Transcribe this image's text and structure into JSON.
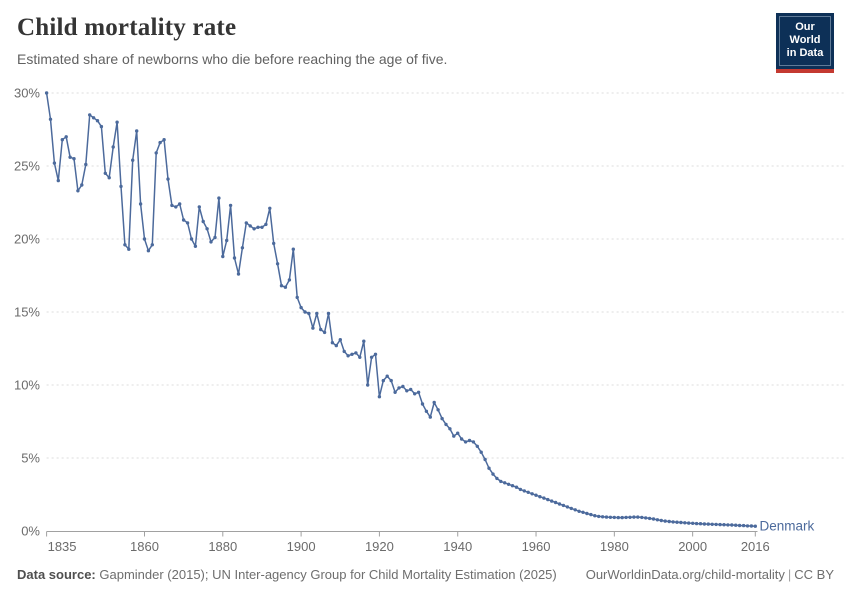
{
  "header": {
    "title": "Child mortality rate",
    "subtitle": "Estimated share of newborns who die before reaching the age of five."
  },
  "logo": {
    "line1": "Our World",
    "line2": "in Data",
    "bg_color": "#0d3057",
    "bar_color": "#c43931"
  },
  "chart_data": {
    "type": "line",
    "title": "Child mortality rate",
    "xlabel": "",
    "ylabel": "",
    "grid": "horizontal-dashed",
    "legend_position": "end-of-line-label",
    "xlim": [
      1835,
      2016
    ],
    "ylim": [
      0,
      30
    ],
    "x_start": 1835,
    "x_end": 2016,
    "x_step": 1,
    "x_ticks": [
      1835,
      1860,
      1880,
      1900,
      1920,
      1940,
      1960,
      1980,
      2000,
      2016
    ],
    "y_ticks": [
      {
        "value": 0,
        "label": "0%"
      },
      {
        "value": 5,
        "label": "5%"
      },
      {
        "value": 10,
        "label": "10%"
      },
      {
        "value": 15,
        "label": "15%"
      },
      {
        "value": 20,
        "label": "20%"
      },
      {
        "value": 25,
        "label": "25%"
      },
      {
        "value": 30,
        "label": "30%"
      }
    ],
    "series": [
      {
        "name": "Denmark",
        "color": "#4c6a9c",
        "unit": "%",
        "values": [
          30.0,
          28.2,
          25.2,
          24.0,
          26.8,
          27.0,
          25.6,
          25.5,
          23.3,
          23.7,
          25.1,
          28.5,
          28.3,
          28.1,
          27.7,
          24.5,
          24.2,
          26.3,
          28.0,
          23.6,
          19.6,
          19.3,
          25.4,
          27.4,
          22.4,
          20.0,
          19.2,
          19.6,
          25.9,
          26.6,
          26.8,
          24.1,
          22.3,
          22.2,
          22.4,
          21.3,
          21.1,
          20.0,
          19.5,
          22.2,
          21.2,
          20.7,
          19.8,
          20.1,
          22.8,
          18.8,
          19.9,
          22.3,
          18.7,
          17.6,
          19.4,
          21.1,
          20.9,
          20.7,
          20.8,
          20.8,
          21.0,
          22.1,
          19.7,
          18.3,
          16.8,
          16.7,
          17.2,
          19.3,
          16.0,
          15.3,
          15.0,
          14.9,
          13.9,
          14.9,
          13.8,
          13.6,
          14.9,
          12.9,
          12.7,
          13.1,
          12.3,
          12.0,
          12.1,
          12.2,
          11.9,
          13.0,
          10.0,
          11.9,
          12.1,
          9.2,
          10.3,
          10.6,
          10.3,
          9.5,
          9.8,
          9.9,
          9.6,
          9.7,
          9.4,
          9.5,
          8.7,
          8.2,
          7.8,
          8.8,
          8.3,
          7.7,
          7.3,
          7.0,
          6.5,
          6.7,
          6.3,
          6.1,
          6.2,
          6.1,
          5.8,
          5.4,
          4.9,
          4.3,
          3.9,
          3.6,
          3.4,
          3.3,
          3.2,
          3.1,
          3.0,
          2.85,
          2.75,
          2.65,
          2.55,
          2.45,
          2.35,
          2.25,
          2.15,
          2.05,
          1.95,
          1.85,
          1.75,
          1.65,
          1.55,
          1.45,
          1.35,
          1.28,
          1.2,
          1.12,
          1.05,
          1.0,
          0.97,
          0.95,
          0.94,
          0.93,
          0.92,
          0.92,
          0.93,
          0.94,
          0.95,
          0.95,
          0.93,
          0.9,
          0.86,
          0.82,
          0.77,
          0.72,
          0.68,
          0.65,
          0.62,
          0.6,
          0.58,
          0.56,
          0.54,
          0.53,
          0.51,
          0.5,
          0.48,
          0.47,
          0.46,
          0.45,
          0.44,
          0.43,
          0.42,
          0.41,
          0.4,
          0.38,
          0.37,
          0.35,
          0.34,
          0.33
        ]
      }
    ]
  },
  "footer": {
    "datasource_label": "Data source:",
    "datasource_text": "Gapminder (2015); UN Inter-agency Group for Child Mortality Estimation (2025)",
    "link": "OurWorldinData.org/child-mortality",
    "separator": "|",
    "license": "CC BY"
  }
}
